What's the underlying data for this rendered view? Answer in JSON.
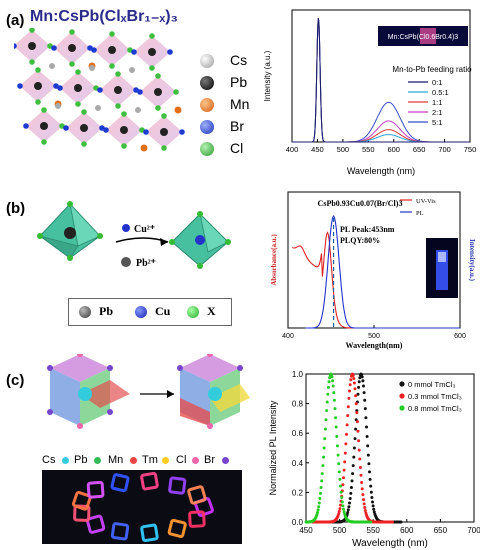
{
  "figure": {
    "panels": [
      {
        "label": "(a)"
      },
      {
        "label": "(b)"
      },
      {
        "label": "(c)"
      }
    ]
  },
  "panel_a": {
    "formula": "Mn:CsPb(ClₓBr₁₋ₓ)₃",
    "legend": [
      {
        "label": "Cs",
        "color": "#aaaaaa"
      },
      {
        "label": "Pb",
        "color": "#111111"
      },
      {
        "label": "Mn",
        "color": "#e0701a"
      },
      {
        "label": "Br",
        "color": "#1d3bd1"
      },
      {
        "label": "Cl",
        "color": "#3fbf3f"
      }
    ],
    "inset_label": "Mn:CsPb(Cl0.6Br0.4)3"
  },
  "panel_b": {
    "reaction": {
      "reagent": "Cu²⁺",
      "product": "Pb²⁺"
    },
    "legend": [
      {
        "label": "Pb",
        "color": "#555555"
      },
      {
        "label": "Cu",
        "color": "#2233cc"
      },
      {
        "label": "X",
        "color": "#33bb33"
      }
    ]
  },
  "panel_c": {
    "legend": [
      {
        "label": "Cs",
        "color": "#33ccdd"
      },
      {
        "label": "Pb",
        "color": "#33bb55"
      },
      {
        "label": "Mn",
        "color": "#ee4444"
      },
      {
        "label": "Tm",
        "color": "#ffcc22"
      },
      {
        "label": "Cl",
        "color": "#ee66aa"
      },
      {
        "label": "Br",
        "color": "#7744cc"
      }
    ]
  },
  "chart_data": [
    {
      "type": "line",
      "title": "",
      "xlabel": "Wavelength (nm)",
      "ylabel": "Intensity (a.u.)",
      "xlim": [
        400,
        750
      ],
      "xticks": [
        400,
        450,
        500,
        550,
        600,
        650,
        700,
        750
      ],
      "legend_title": "Mn-to-Pb feeding ratio",
      "series": [
        {
          "name": "0:1",
          "color": "#1a1a6a",
          "pl_peak": 452,
          "pl_height": 1.0,
          "mn_peak": 590,
          "mn_height": 0.0
        },
        {
          "name": "0.5:1",
          "color": "#2ba7d8",
          "pl_peak": 452,
          "pl_height": 1.0,
          "mn_peak": 590,
          "mn_height": 0.06
        },
        {
          "name": "1:1",
          "color": "#d93a3a",
          "pl_peak": 452,
          "pl_height": 1.0,
          "mn_peak": 590,
          "mn_height": 0.1
        },
        {
          "name": "2:1",
          "color": "#c040c0",
          "pl_peak": 452,
          "pl_height": 1.0,
          "mn_peak": 590,
          "mn_height": 0.17
        },
        {
          "name": "5:1",
          "color": "#3a4fc8",
          "pl_peak": 452,
          "pl_height": 1.0,
          "mn_peak": 590,
          "mn_height": 0.32
        }
      ]
    },
    {
      "type": "line",
      "title": "CsPb0.93Cu0.07(Br/Cl)3",
      "xlabel": "Wavelength(nm)",
      "ylabel_left": "Absorbance(a.u.)",
      "ylabel_right": "Intensity(a.u.)",
      "xlim": [
        400,
        600
      ],
      "xticks": [
        400,
        500,
        600
      ],
      "annotation_1": "PL Peak:453nm",
      "annotation_2": "PLQY:80%",
      "pl_peak_nm": 453,
      "series": [
        {
          "name": "UV-Vis",
          "color": "#dd2222"
        },
        {
          "name": "PL",
          "color": "#2233cc"
        }
      ]
    },
    {
      "type": "scatter",
      "title": "",
      "xlabel": "Wavelength (nm)",
      "ylabel": "Normalized PL Intensity",
      "xlim": [
        450,
        700
      ],
      "ylim": [
        0.0,
        1.0
      ],
      "xticks": [
        450,
        500,
        550,
        600,
        650,
        700
      ],
      "yticks": [
        0.0,
        0.2,
        0.4,
        0.6,
        0.8,
        1.0
      ],
      "series": [
        {
          "name": "0 mmol TmCl₃",
          "color": "#111111",
          "peak": 532,
          "fwhm": 20
        },
        {
          "name": "0.3 mmol TmCl₃",
          "color": "#ee2222",
          "peak": 519,
          "fwhm": 20
        },
        {
          "name": "0.8 mmol TmCl₃",
          "color": "#22cc22",
          "peak": 487,
          "fwhm": 20
        }
      ]
    }
  ]
}
